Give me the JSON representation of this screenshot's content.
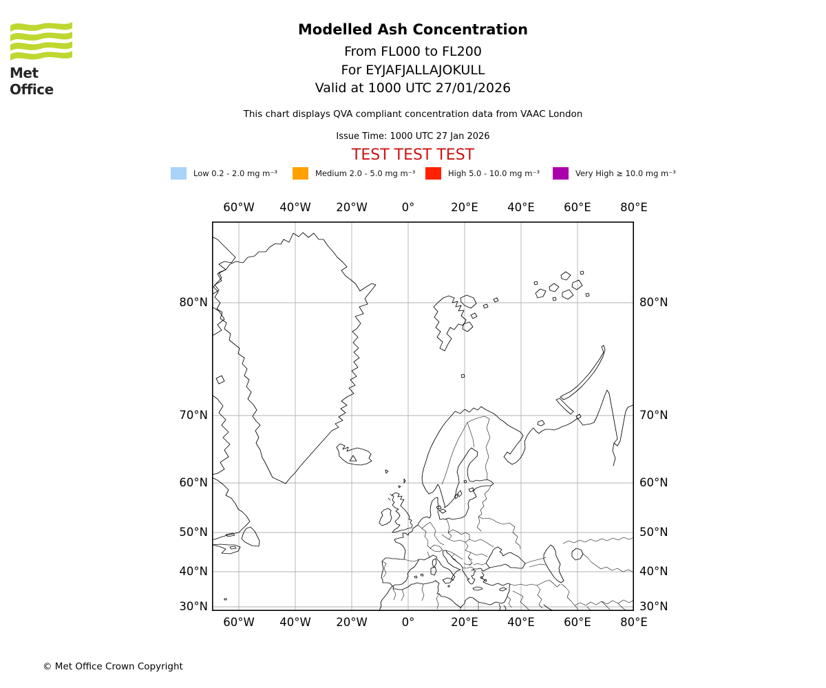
{
  "brand": {
    "logo_text": "Met Office",
    "logo_color": "#BFD730"
  },
  "header": {
    "title": "Modelled Ash Concentration",
    "subtitle_lines": [
      "From FL000 to FL200",
      "For EYJAFJALLAJOKULL",
      "Valid at 1000 UTC 27/01/2026"
    ],
    "description": "This chart displays QVA compliant concentration data from VAAC London",
    "issue_time": "Issue Time: 1000 UTC 27 Jan 2026",
    "watermark": "TEST TEST TEST",
    "watermark_color": "#CC1212"
  },
  "legend": {
    "items": [
      {
        "name": "low",
        "label": "Low 0.2 - 2.0 mg m⁻³",
        "color": "#A9D3F8"
      },
      {
        "name": "medium",
        "label": "Medium 2.0 - 5.0 mg m⁻³",
        "color": "#FFA101"
      },
      {
        "name": "high",
        "label": "High 5.0 - 10.0 mg m⁻³",
        "color": "#FF2100"
      },
      {
        "name": "very-high",
        "label": "Very High  ≥  10.0 mg m⁻³",
        "color": "#AA00AA"
      }
    ]
  },
  "map": {
    "x_ticks": [
      "60°W",
      "40°W",
      "20°W",
      "0°",
      "20°E",
      "40°E",
      "60°E",
      "80°E"
    ],
    "y_ticks": [
      "80°N",
      "70°N",
      "60°N",
      "50°N",
      "40°N",
      "30°N"
    ]
  },
  "chart_data": {
    "type": "map",
    "title": "Modelled Ash Concentration",
    "projection": "cylindrical (Mercator-style), North Atlantic / Europe",
    "lon_range_deg": [
      -69.5,
      80
    ],
    "lat_range_deg": [
      28.6,
      84
    ],
    "x_tick_lons": [
      -60,
      -40,
      -20,
      0,
      20,
      40,
      60,
      80
    ],
    "y_tick_lats": [
      80,
      70,
      60,
      50,
      40,
      30
    ],
    "grid": true,
    "ash_concentration_polygons": "none plotted (TEST chart - map shows coastlines and borders only)",
    "legend_position": "above map, horizontal row",
    "legend_bins_mg_m3": [
      [
        0.2,
        2.0
      ],
      [
        2.0,
        5.0
      ],
      [
        5.0,
        10.0
      ],
      [
        10.0,
        null
      ]
    ]
  },
  "footer": {
    "copyright": "© Met Office Crown Copyright"
  }
}
